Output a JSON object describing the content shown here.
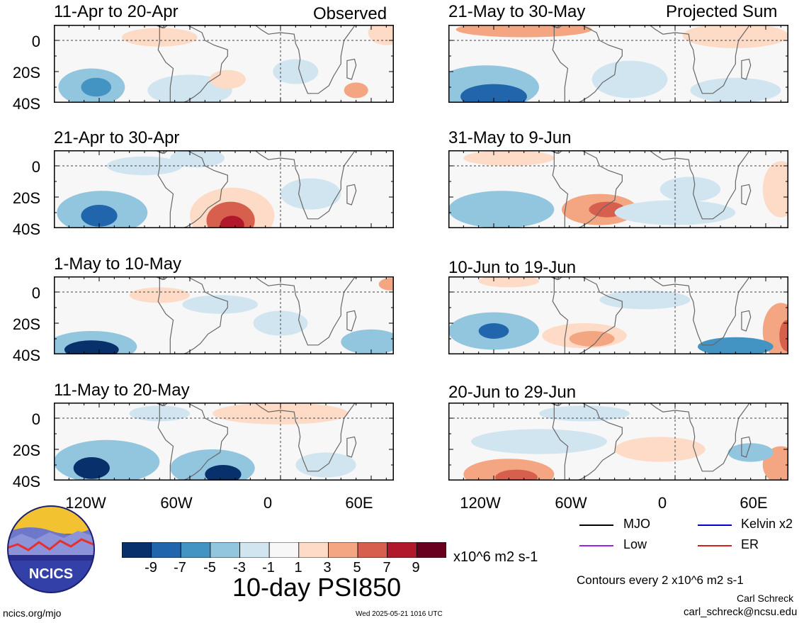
{
  "section_labels": {
    "observed": "Observed",
    "projected": "Projected Sum"
  },
  "panels": [
    {
      "title": "11-Apr to 20-Apr",
      "group": "observed"
    },
    {
      "title": "21-Apr to 30-Apr",
      "group": "observed"
    },
    {
      "title": "1-May to 10-May",
      "group": "observed"
    },
    {
      "title": "11-May to 20-May",
      "group": "observed"
    },
    {
      "title": "21-May to 30-May",
      "group": "projected"
    },
    {
      "title": "31-May to 9-Jun",
      "group": "projected"
    },
    {
      "title": "10-Jun to 19-Jun",
      "group": "projected"
    },
    {
      "title": "20-Jun to 29-Jun",
      "group": "projected"
    }
  ],
  "y_ticks": [
    "0",
    "20S",
    "40S"
  ],
  "x_ticks": [
    "120W",
    "60W",
    "0",
    "60E"
  ],
  "colorbar": {
    "ticks": [
      "-9",
      "-7",
      "-5",
      "-3",
      "-1",
      "1",
      "3",
      "5",
      "7",
      "9"
    ],
    "colors": [
      "#08306b",
      "#2166ac",
      "#4393c3",
      "#92c5de",
      "#d1e5f0",
      "#f7f7f7",
      "#fddbc7",
      "#f4a582",
      "#d6604d",
      "#b2182b",
      "#67001f"
    ],
    "units": "x10^6 m2 s-1"
  },
  "main_title": "10-day PSI850",
  "legend": [
    {
      "label": "MJO",
      "color": "#000000"
    },
    {
      "label": "Kelvin x2",
      "color": "#0000cc"
    },
    {
      "label": "Low",
      "color": "#a020f0"
    },
    {
      "label": "ER",
      "color": "#d62020"
    }
  ],
  "contour_note": "Contours every 2 x10^6 m2 s-1",
  "author": "Carl Schreck",
  "email": "carl_schreck@ncsu.edu",
  "url": "ncics.org/mjo",
  "timestamp": "Wed 2025-05-21 1016 UTC",
  "logo_text": "NCICS",
  "anomaly_blobs": [
    [
      {
        "lon": -125,
        "lat": -30,
        "rx": 22,
        "ry": 12,
        "c": "#92c5de"
      },
      {
        "lon": -122,
        "lat": -30,
        "rx": 10,
        "ry": 6,
        "c": "#4393c3"
      },
      {
        "lon": -60,
        "lat": -32,
        "rx": 28,
        "ry": 10,
        "c": "#d1e5f0"
      },
      {
        "lon": -35,
        "lat": -25,
        "rx": 12,
        "ry": 6,
        "c": "#fddbc7"
      },
      {
        "lon": -80,
        "lat": 2,
        "rx": 25,
        "ry": 6,
        "c": "#fddbc7"
      },
      {
        "lon": 50,
        "lat": -32,
        "rx": 8,
        "ry": 5,
        "c": "#f4a582"
      },
      {
        "lon": 70,
        "lat": 5,
        "rx": 12,
        "ry": 8,
        "c": "#fddbc7"
      },
      {
        "lon": 10,
        "lat": -20,
        "rx": 15,
        "ry": 8,
        "c": "#d1e5f0"
      }
    ],
    [
      {
        "lon": -118,
        "lat": -30,
        "rx": 30,
        "ry": 14,
        "c": "#92c5de"
      },
      {
        "lon": -120,
        "lat": -32,
        "rx": 12,
        "ry": 7,
        "c": "#2166ac"
      },
      {
        "lon": -32,
        "lat": -32,
        "rx": 28,
        "ry": 18,
        "c": "#fddbc7"
      },
      {
        "lon": -33,
        "lat": -35,
        "rx": 16,
        "ry": 12,
        "c": "#d6604d"
      },
      {
        "lon": -32,
        "lat": -38,
        "rx": 8,
        "ry": 6,
        "c": "#b2182b"
      },
      {
        "lon": -90,
        "lat": 0,
        "rx": 25,
        "ry": 6,
        "c": "#d1e5f0"
      },
      {
        "lon": 20,
        "lat": -18,
        "rx": 20,
        "ry": 10,
        "c": "#d1e5f0"
      },
      {
        "lon": -55,
        "lat": 5,
        "rx": 18,
        "ry": 6,
        "c": "#d1e5f0"
      }
    ],
    [
      {
        "lon": -125,
        "lat": -35,
        "rx": 30,
        "ry": 10,
        "c": "#92c5de"
      },
      {
        "lon": -125,
        "lat": -37,
        "rx": 18,
        "ry": 6,
        "c": "#08306b"
      },
      {
        "lon": -80,
        "lat": -2,
        "rx": 20,
        "ry": 5,
        "c": "#fddbc7"
      },
      {
        "lon": -40,
        "lat": -8,
        "rx": 25,
        "ry": 6,
        "c": "#d1e5f0"
      },
      {
        "lon": 60,
        "lat": -32,
        "rx": 20,
        "ry": 8,
        "c": "#92c5de"
      },
      {
        "lon": 73,
        "lat": 5,
        "rx": 8,
        "ry": 4,
        "c": "#f4a582"
      },
      {
        "lon": 0,
        "lat": -20,
        "rx": 18,
        "ry": 8,
        "c": "#d1e5f0"
      }
    ],
    [
      {
        "lon": -115,
        "lat": -28,
        "rx": 35,
        "ry": 14,
        "c": "#92c5de"
      },
      {
        "lon": -125,
        "lat": -32,
        "rx": 12,
        "ry": 7,
        "c": "#08306b"
      },
      {
        "lon": -45,
        "lat": -32,
        "rx": 28,
        "ry": 12,
        "c": "#92c5de"
      },
      {
        "lon": -38,
        "lat": -36,
        "rx": 12,
        "ry": 6,
        "c": "#08306b"
      },
      {
        "lon": 0,
        "lat": 3,
        "rx": 45,
        "ry": 7,
        "c": "#fddbc7"
      },
      {
        "lon": -80,
        "lat": 3,
        "rx": 20,
        "ry": 5,
        "c": "#d1e5f0"
      },
      {
        "lon": 30,
        "lat": -30,
        "rx": 20,
        "ry": 8,
        "c": "#d1e5f0"
      }
    ],
    [
      {
        "lon": -125,
        "lat": -30,
        "rx": 35,
        "ry": 14,
        "c": "#92c5de"
      },
      {
        "lon": -120,
        "lat": -36,
        "rx": 22,
        "ry": 8,
        "c": "#2166ac"
      },
      {
        "lon": -100,
        "lat": 7,
        "rx": 45,
        "ry": 5,
        "c": "#f4a582"
      },
      {
        "lon": 40,
        "lat": 3,
        "rx": 35,
        "ry": 8,
        "c": "#fddbc7"
      },
      {
        "lon": -30,
        "lat": -25,
        "rx": 25,
        "ry": 12,
        "c": "#d1e5f0"
      },
      {
        "lon": 40,
        "lat": -32,
        "rx": 30,
        "ry": 8,
        "c": "#d1e5f0"
      }
    ],
    [
      {
        "lon": -115,
        "lat": -28,
        "rx": 35,
        "ry": 12,
        "c": "#92c5de"
      },
      {
        "lon": -50,
        "lat": -28,
        "rx": 25,
        "ry": 10,
        "c": "#f4a582"
      },
      {
        "lon": -45,
        "lat": -28,
        "rx": 12,
        "ry": 5,
        "c": "#d6604d"
      },
      {
        "lon": -110,
        "lat": 5,
        "rx": 30,
        "ry": 5,
        "c": "#fddbc7"
      },
      {
        "lon": 70,
        "lat": -15,
        "rx": 12,
        "ry": 18,
        "c": "#fddbc7"
      },
      {
        "lon": 0,
        "lat": -30,
        "rx": 40,
        "ry": 8,
        "c": "#d1e5f0"
      },
      {
        "lon": 10,
        "lat": -15,
        "rx": 20,
        "ry": 8,
        "c": "#d1e5f0"
      }
    ],
    [
      {
        "lon": -120,
        "lat": -25,
        "rx": 30,
        "ry": 12,
        "c": "#92c5de"
      },
      {
        "lon": -120,
        "lat": -25,
        "rx": 10,
        "ry": 5,
        "c": "#2166ac"
      },
      {
        "lon": -60,
        "lat": -28,
        "rx": 28,
        "ry": 8,
        "c": "#fddbc7"
      },
      {
        "lon": -55,
        "lat": -30,
        "rx": 15,
        "ry": 5,
        "c": "#f4a582"
      },
      {
        "lon": 70,
        "lat": -25,
        "rx": 12,
        "ry": 18,
        "c": "#f4a582"
      },
      {
        "lon": 74,
        "lat": -28,
        "rx": 5,
        "ry": 10,
        "c": "#d6604d"
      },
      {
        "lon": 40,
        "lat": -35,
        "rx": 25,
        "ry": 6,
        "c": "#4393c3"
      },
      {
        "lon": -110,
        "lat": 7,
        "rx": 20,
        "ry": 4,
        "c": "#fddbc7"
      },
      {
        "lon": -20,
        "lat": -5,
        "rx": 30,
        "ry": 6,
        "c": "#d1e5f0"
      }
    ],
    [
      {
        "lon": -110,
        "lat": -36,
        "rx": 30,
        "ry": 10,
        "c": "#f4a582"
      },
      {
        "lon": -105,
        "lat": -38,
        "rx": 14,
        "ry": 5,
        "c": "#d6604d"
      },
      {
        "lon": -90,
        "lat": -15,
        "rx": 45,
        "ry": 8,
        "c": "#d1e5f0"
      },
      {
        "lon": 70,
        "lat": -30,
        "rx": 12,
        "ry": 12,
        "c": "#f4a582"
      },
      {
        "lon": 50,
        "lat": -22,
        "rx": 15,
        "ry": 6,
        "c": "#92c5de"
      },
      {
        "lon": -60,
        "lat": 3,
        "rx": 30,
        "ry": 5,
        "c": "#d1e5f0"
      },
      {
        "lon": -10,
        "lat": -20,
        "rx": 30,
        "ry": 8,
        "c": "#fddbc7"
      }
    ]
  ]
}
